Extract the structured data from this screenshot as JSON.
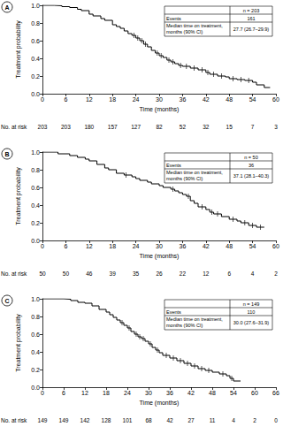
{
  "chart_data": [
    {
      "type": "line",
      "title": "A",
      "x_label": "Time (months)",
      "y_label": "Treatment probability",
      "line_style": "step",
      "marker": "vline",
      "color": "#000000",
      "grid": false,
      "xlim": [
        0,
        60
      ],
      "xticks": [
        0,
        6,
        12,
        18,
        24,
        30,
        36,
        42,
        48,
        54,
        60
      ],
      "ylim": [
        0,
        1
      ],
      "yticks": [
        {
          "value": 0,
          "label": "0.0"
        },
        {
          "value": 0.2,
          "label": "0.2"
        },
        {
          "value": 0.4,
          "label": "0.4"
        },
        {
          "value": 0.6,
          "label": "0.6"
        },
        {
          "value": 0.8,
          "label": "0.8"
        },
        {
          "value": 1,
          "label": "1.0"
        }
      ],
      "x": [
        0,
        3,
        5,
        7,
        9,
        10,
        12,
        13,
        15,
        16,
        18,
        19,
        20,
        21,
        22,
        23,
        24,
        25,
        26,
        27,
        28,
        29,
        30,
        31,
        32,
        33,
        34,
        35,
        36,
        38,
        40,
        42,
        43,
        45,
        47,
        48,
        50,
        52,
        54,
        55,
        57,
        58.5
      ],
      "values": [
        1.0,
        0.995,
        0.985,
        0.975,
        0.955,
        0.94,
        0.9,
        0.88,
        0.85,
        0.83,
        0.78,
        0.76,
        0.74,
        0.71,
        0.68,
        0.66,
        0.63,
        0.6,
        0.56,
        0.53,
        0.49,
        0.46,
        0.43,
        0.41,
        0.38,
        0.36,
        0.34,
        0.32,
        0.31,
        0.29,
        0.27,
        0.24,
        0.22,
        0.2,
        0.19,
        0.17,
        0.16,
        0.15,
        0.13,
        0.1,
        0.07,
        0.07
      ],
      "censored_x": [
        23.5,
        24.5,
        25.5,
        26.5,
        29.5,
        30.5,
        32.5,
        33.5,
        35.5,
        37,
        39,
        41,
        42.5,
        44,
        46,
        49,
        51,
        53
      ],
      "censored_values": [
        0.66,
        0.63,
        0.6,
        0.56,
        0.46,
        0.43,
        0.38,
        0.36,
        0.32,
        0.31,
        0.29,
        0.27,
        0.24,
        0.22,
        0.2,
        0.17,
        0.16,
        0.15
      ],
      "risk_label": "No. at risk",
      "at_risk": [
        203,
        203,
        180,
        157,
        127,
        82,
        52,
        32,
        15,
        7,
        3
      ],
      "inset": {
        "n_label": "n = 203",
        "events_label": "Events",
        "events": 161,
        "median_label": [
          "Median time on treatment,",
          "months (90% CI)"
        ],
        "median": "27.7 (26.7–29.9)"
      }
    },
    {
      "type": "line",
      "title": "B",
      "x_label": "Time (months)",
      "y_label": "Treatment probability",
      "line_style": "step",
      "marker": "vline",
      "color": "#000000",
      "grid": false,
      "xlim": [
        0,
        60
      ],
      "xticks": [
        0,
        6,
        12,
        18,
        24,
        30,
        36,
        42,
        48,
        54,
        60
      ],
      "ylim": [
        0,
        1
      ],
      "yticks": [
        {
          "value": 0,
          "label": "0.0"
        },
        {
          "value": 0.2,
          "label": "0.2"
        },
        {
          "value": 0.4,
          "label": "0.4"
        },
        {
          "value": 0.6,
          "label": "0.6"
        },
        {
          "value": 0.8,
          "label": "0.8"
        },
        {
          "value": 1,
          "label": "1.0"
        }
      ],
      "x": [
        0,
        4,
        7,
        9,
        11,
        12,
        14,
        16,
        17,
        19,
        21,
        23,
        24,
        25,
        27,
        28,
        30,
        31,
        33,
        34,
        35,
        36,
        37,
        38,
        39,
        40,
        42,
        43,
        44,
        46,
        48,
        50,
        51,
        53,
        55,
        57
      ],
      "values": [
        1.0,
        0.98,
        0.96,
        0.94,
        0.92,
        0.9,
        0.86,
        0.82,
        0.8,
        0.76,
        0.74,
        0.72,
        0.7,
        0.68,
        0.66,
        0.64,
        0.62,
        0.6,
        0.58,
        0.56,
        0.54,
        0.52,
        0.5,
        0.45,
        0.42,
        0.38,
        0.35,
        0.32,
        0.3,
        0.27,
        0.24,
        0.22,
        0.2,
        0.17,
        0.15,
        0.15
      ],
      "censored_x": [
        21.5,
        33.5,
        37.5,
        41,
        43.5,
        45,
        49,
        52,
        54,
        56
      ],
      "censored_values": [
        0.74,
        0.58,
        0.5,
        0.38,
        0.32,
        0.3,
        0.24,
        0.2,
        0.17,
        0.15
      ],
      "risk_label": "No. at risk",
      "at_risk": [
        50,
        50,
        46,
        39,
        35,
        26,
        22,
        12,
        6,
        4,
        2
      ],
      "inset": {
        "n_label": "n = 50",
        "events_label": "Events",
        "events": 36,
        "median_label": [
          "Median time on treatment,",
          "months (90% CI)"
        ],
        "median": "37.1 (28.1–40.3)"
      }
    },
    {
      "type": "line",
      "title": "C",
      "x_label": "Time (months)",
      "y_label": "Treatment probability",
      "line_style": "step",
      "marker": "vline",
      "color": "#000000",
      "grid": false,
      "xlim": [
        0,
        66
      ],
      "xticks": [
        0,
        6,
        12,
        18,
        24,
        30,
        36,
        42,
        48,
        54,
        60,
        66
      ],
      "ylim": [
        0,
        1
      ],
      "yticks": [
        {
          "value": 0,
          "label": "0.0"
        },
        {
          "value": 0.2,
          "label": "0.2"
        },
        {
          "value": 0.4,
          "label": "0.4"
        },
        {
          "value": 0.6,
          "label": "0.6"
        },
        {
          "value": 0.8,
          "label": "0.8"
        },
        {
          "value": 1,
          "label": "1.0"
        }
      ],
      "x": [
        0,
        6,
        8,
        10,
        12,
        14,
        16,
        18,
        19,
        20,
        21,
        22,
        23,
        24,
        25,
        26,
        27,
        28,
        29,
        30,
        31,
        32,
        33,
        34,
        36,
        38,
        40,
        42,
        44,
        46,
        48,
        50,
        52,
        53,
        54,
        56
      ],
      "values": [
        1.0,
        0.995,
        0.98,
        0.96,
        0.95,
        0.92,
        0.88,
        0.85,
        0.82,
        0.79,
        0.76,
        0.73,
        0.7,
        0.67,
        0.63,
        0.6,
        0.57,
        0.55,
        0.52,
        0.49,
        0.45,
        0.42,
        0.39,
        0.36,
        0.33,
        0.3,
        0.27,
        0.24,
        0.21,
        0.19,
        0.17,
        0.15,
        0.13,
        0.1,
        0.07,
        0.07
      ],
      "censored_x": [
        22.5,
        24.5,
        26.5,
        27.5,
        28.5,
        30.5,
        32.5,
        35,
        37,
        39,
        41,
        43,
        45,
        47,
        51,
        53.5
      ],
      "censored_values": [
        0.73,
        0.67,
        0.6,
        0.57,
        0.55,
        0.49,
        0.42,
        0.36,
        0.33,
        0.3,
        0.27,
        0.24,
        0.21,
        0.19,
        0.15,
        0.1
      ],
      "risk_label": "No. at risk",
      "at_risk": [
        149,
        149,
        142,
        128,
        101,
        68,
        42,
        27,
        11,
        4,
        2,
        0
      ],
      "inset": {
        "n_label": "n = 149",
        "events_label": "Events",
        "events": 110,
        "median_label": [
          "Median time on treatment,",
          "months (90% CI)"
        ],
        "median": "30.0 (27.6–31.9)"
      }
    }
  ]
}
